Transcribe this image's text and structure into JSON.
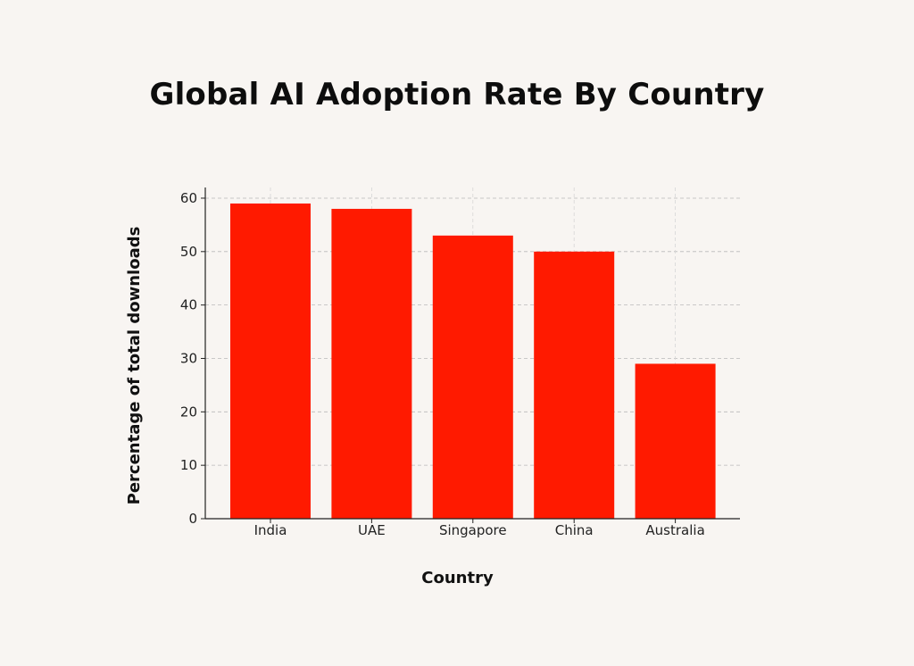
{
  "chart_data": {
    "type": "bar",
    "title": "Global AI Adoption Rate By Country",
    "xlabel": "Country",
    "ylabel": "Percentage of total downloads",
    "categories": [
      "India",
      "UAE",
      "Singapore",
      "China",
      "Australia"
    ],
    "values": [
      59,
      58,
      53,
      50,
      29
    ],
    "ylim": [
      0,
      62
    ],
    "yticks": [
      0,
      10,
      20,
      30,
      40,
      50,
      60
    ],
    "grid": true,
    "bar_color": "#ff1a00"
  }
}
